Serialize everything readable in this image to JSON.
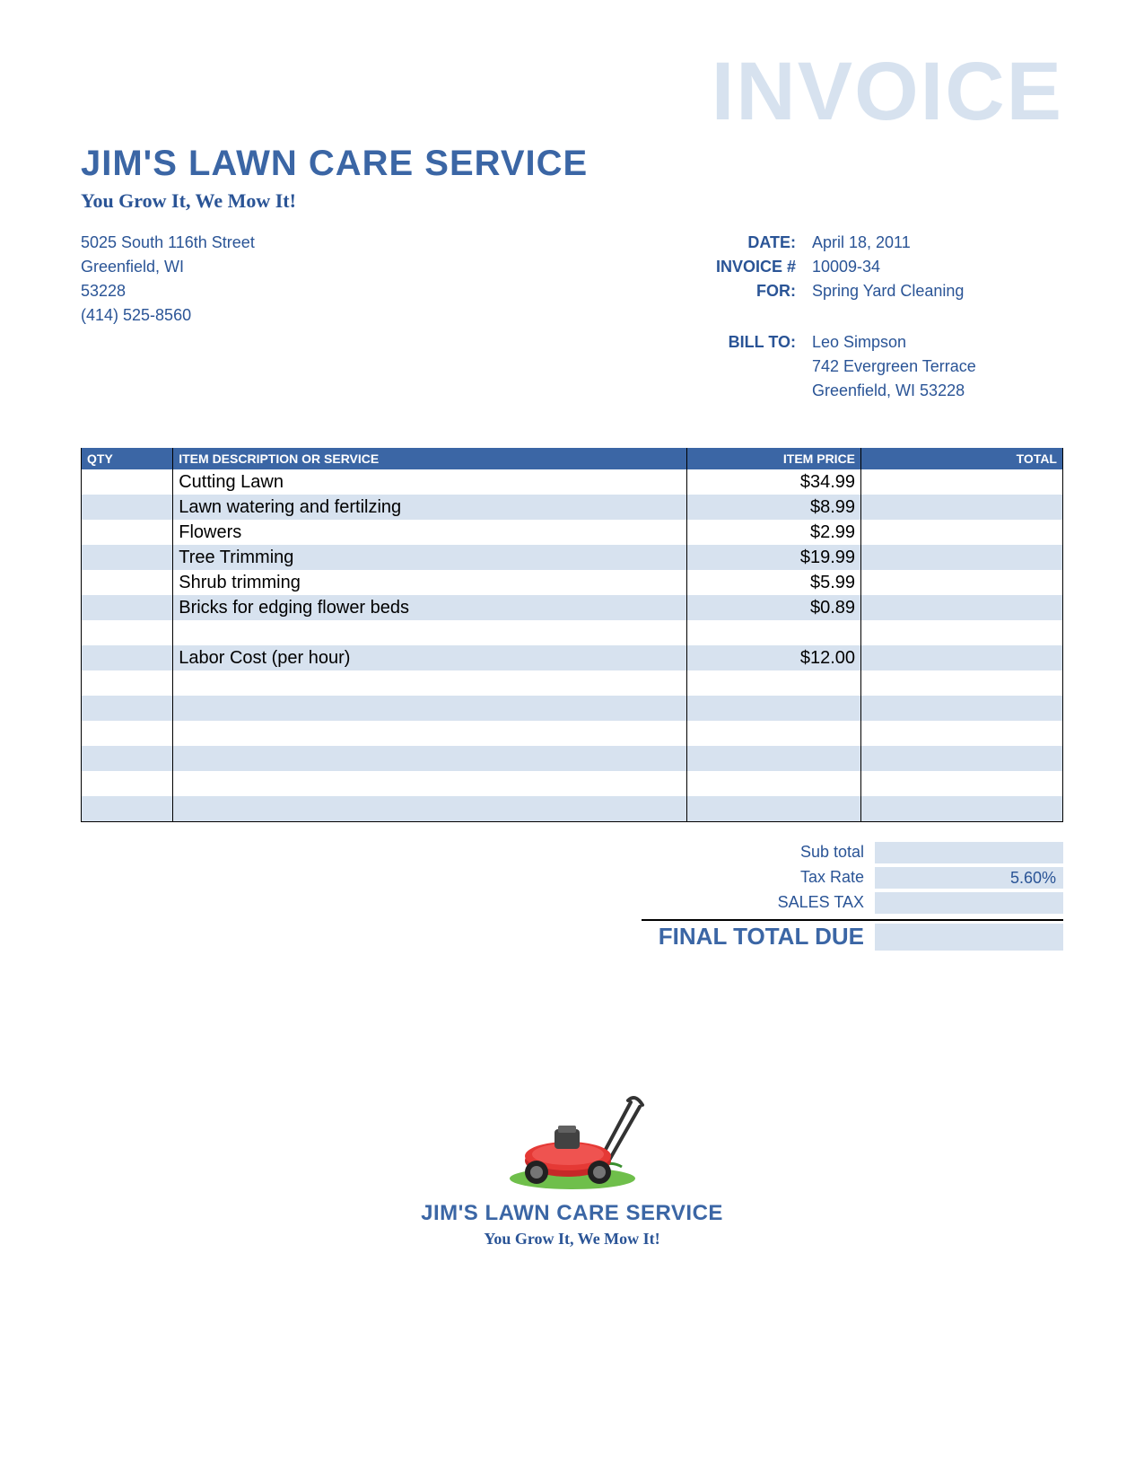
{
  "colors": {
    "accent": "#3b66a5",
    "text_blue": "#2a5496",
    "pale_blue": "#d7e2ef",
    "white": "#ffffff",
    "black": "#000000"
  },
  "watermark": "INVOICE",
  "header": {
    "company_name": "JIM'S LAWN CARE SERVICE",
    "tagline": "You Grow It, We Mow It!",
    "address_line1": "5025 South 116th Street",
    "address_line2": "Greenfield, WI",
    "zip": "53228",
    "phone": "(414) 525-8560"
  },
  "meta": {
    "date_label": "DATE:",
    "date_value": "April 18, 2011",
    "invoice_label": "INVOICE #",
    "invoice_value": "10009-34",
    "for_label": "FOR:",
    "for_value": "Spring Yard Cleaning",
    "billto_label": "BILL TO:",
    "billto_name": "Leo Simpson",
    "billto_addr": "742 Evergreen Terrace",
    "billto_city": "Greenfield, WI   53228"
  },
  "table": {
    "headers": {
      "qty": "QTY",
      "desc": "ITEM DESCRIPTION OR SERVICE",
      "price": "ITEM PRICE",
      "total": "TOTAL"
    },
    "rows": [
      {
        "qty": "",
        "desc": "Cutting Lawn",
        "price": "$34.99",
        "total": ""
      },
      {
        "qty": "",
        "desc": "Lawn watering and fertilzing",
        "price": "$8.99",
        "total": ""
      },
      {
        "qty": "",
        "desc": "Flowers",
        "price": "$2.99",
        "total": ""
      },
      {
        "qty": "",
        "desc": "Tree Trimming",
        "price": "$19.99",
        "total": ""
      },
      {
        "qty": "",
        "desc": "Shrub trimming",
        "price": "$5.99",
        "total": ""
      },
      {
        "qty": "",
        "desc": "Bricks for edging flower beds",
        "price": "$0.89",
        "total": ""
      },
      {
        "qty": "",
        "desc": "",
        "price": "",
        "total": ""
      },
      {
        "qty": "",
        "desc": "Labor Cost (per hour)",
        "price": "$12.00",
        "total": ""
      },
      {
        "qty": "",
        "desc": "",
        "price": "",
        "total": ""
      },
      {
        "qty": "",
        "desc": "",
        "price": "",
        "total": ""
      },
      {
        "qty": "",
        "desc": "",
        "price": "",
        "total": ""
      },
      {
        "qty": "",
        "desc": "",
        "price": "",
        "total": ""
      },
      {
        "qty": "",
        "desc": "",
        "price": "",
        "total": ""
      },
      {
        "qty": "",
        "desc": "",
        "price": "",
        "total": ""
      }
    ],
    "stripe_color": "#d7e2ef"
  },
  "totals": {
    "subtotal_label": "Sub total",
    "subtotal_value": "",
    "taxrate_label": "Tax Rate",
    "taxrate_value": "5.60%",
    "salestax_label": "SALES TAX",
    "salestax_value": "",
    "final_label": "FINAL TOTAL DUE",
    "final_value": ""
  },
  "footer": {
    "company_name": "JIM'S LAWN CARE SERVICE",
    "tagline": "You Grow It, We Mow It!"
  }
}
